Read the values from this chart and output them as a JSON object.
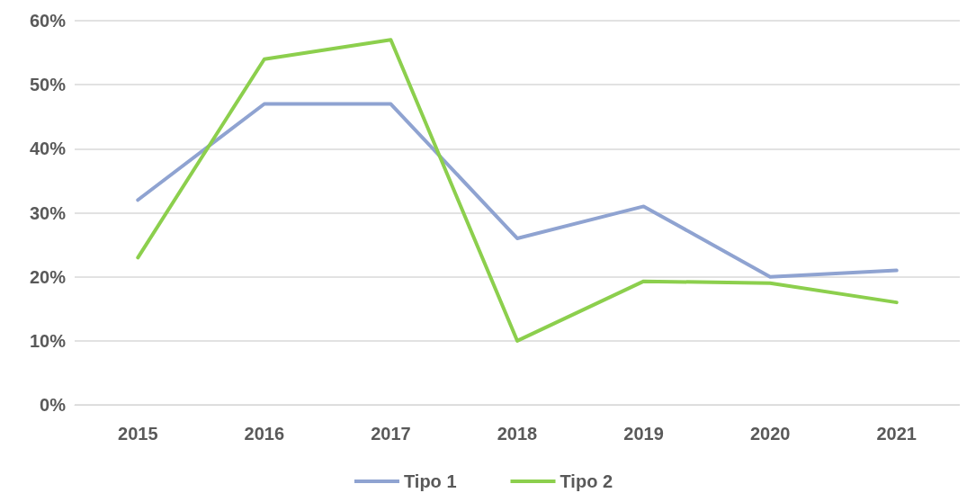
{
  "chart_data": {
    "type": "line",
    "categories": [
      "2015",
      "2016",
      "2017",
      "2018",
      "2019",
      "2020",
      "2021"
    ],
    "series": [
      {
        "name": "Tipo 1",
        "color": "#8fa3d1",
        "values": [
          32,
          47,
          47,
          26,
          31,
          20,
          21
        ]
      },
      {
        "name": "Tipo 2",
        "color": "#8ccf4d",
        "values": [
          23,
          54,
          57,
          10,
          19.3,
          19,
          16
        ]
      }
    ],
    "ylim": [
      0,
      60
    ],
    "yticks": [
      {
        "value": 0,
        "label": "0%"
      },
      {
        "value": 10,
        "label": "10%"
      },
      {
        "value": 20,
        "label": "20%"
      },
      {
        "value": 30,
        "label": "30%"
      },
      {
        "value": 40,
        "label": "40%"
      },
      {
        "value": 50,
        "label": "50%"
      },
      {
        "value": 60,
        "label": "60%"
      }
    ],
    "grid": "y",
    "legend": "bottom",
    "marker": "none",
    "line_style": "solid"
  }
}
